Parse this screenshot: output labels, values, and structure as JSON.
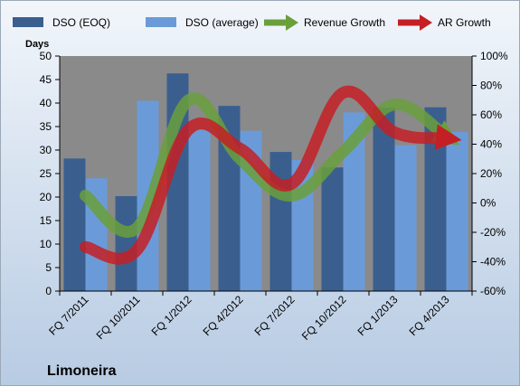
{
  "company": "Limoneira",
  "colors": {
    "dso_eoq": "#3a5f8f",
    "dso_avg": "#6a9bd8",
    "revenue_growth": "#6a9f3c",
    "ar_growth": "#c41f24",
    "plot_bg": "#8a8a8a",
    "page_bg_top": "#f2f6fb",
    "page_bg_bottom": "#b7cbe3"
  },
  "chart_data": {
    "type": "bar",
    "categories": [
      "FQ 7/2011",
      "FQ 10/2011",
      "FQ 1/2012",
      "FQ 4/2012",
      "FQ 7/2012",
      "FQ 10/2012",
      "FQ 1/2013",
      "FQ 4/2013"
    ],
    "series": [
      {
        "name": "DSO (EOQ)",
        "type": "bar",
        "axis": "left",
        "values": [
          28.2,
          20.2,
          46.3,
          39.4,
          29.6,
          26.3,
          39.0,
          39.1
        ]
      },
      {
        "name": "DSO (average)",
        "type": "bar",
        "axis": "left",
        "values": [
          24.0,
          40.5,
          34.2,
          34.1,
          27.9,
          38.0,
          31.0,
          33.9
        ]
      },
      {
        "name": "Revenue Growth",
        "type": "line",
        "axis": "right",
        "values": [
          5,
          -17,
          70,
          30,
          5,
          35,
          67,
          45
        ]
      },
      {
        "name": "AR Growth",
        "type": "line",
        "axis": "right",
        "values": [
          -30,
          -32,
          50,
          37,
          13,
          75,
          48,
          44
        ]
      }
    ],
    "ylabel": "Days",
    "ylim": [
      0,
      50
    ],
    "y_ticks": [
      "0",
      "5",
      "10",
      "15",
      "20",
      "25",
      "30",
      "35",
      "40",
      "45",
      "50"
    ],
    "y2lim": [
      -60,
      100
    ],
    "y2_ticks": [
      "-60%",
      "-40%",
      "-20%",
      "0%",
      "20%",
      "40%",
      "60%",
      "80%",
      "100%"
    ],
    "legend_position": "top",
    "grid": false
  }
}
